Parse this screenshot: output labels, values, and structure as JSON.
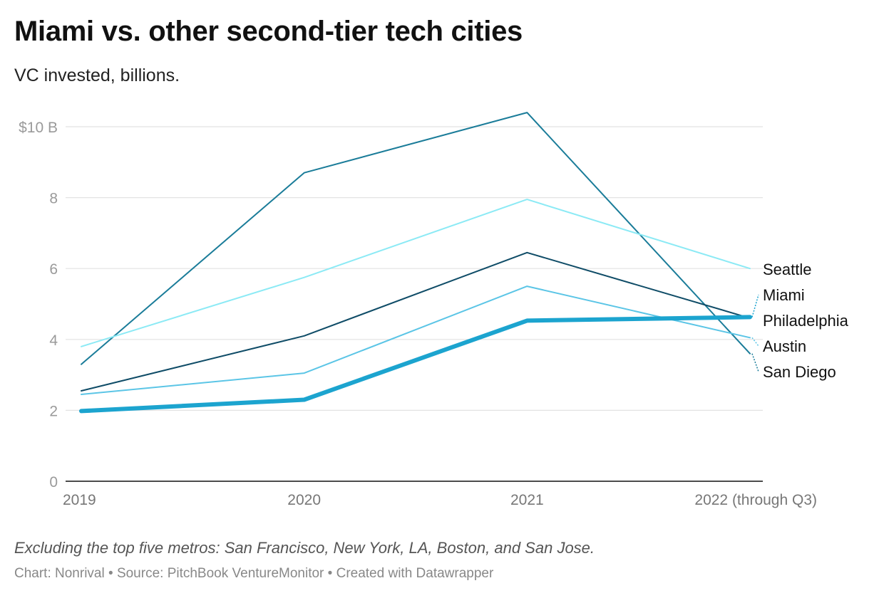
{
  "chart_data": {
    "type": "line",
    "title": "Miami vs. other second-tier tech cities",
    "subtitle": "VC invested, billions.",
    "categories": [
      "2019",
      "2020",
      "2021",
      "2022 (through Q3)"
    ],
    "ylim": [
      0,
      10
    ],
    "y_ticks": [
      {
        "value": 0,
        "label": "0"
      },
      {
        "value": 2,
        "label": "2"
      },
      {
        "value": 4,
        "label": "4"
      },
      {
        "value": 6,
        "label": "6"
      },
      {
        "value": 8,
        "label": "8"
      },
      {
        "value": 10,
        "label": "$10 B"
      }
    ],
    "grid": true,
    "series": [
      {
        "name": "San Diego",
        "values": [
          3.3,
          8.7,
          10.4,
          3.6
        ],
        "color": "#1a7c99",
        "highlight": false
      },
      {
        "name": "Seattle",
        "values": [
          3.8,
          5.75,
          7.95,
          6.0
        ],
        "color": "#8ceaf5",
        "highlight": false
      },
      {
        "name": "Philadelphia",
        "values": [
          2.55,
          4.1,
          6.45,
          4.6
        ],
        "color": "#0f4c67",
        "highlight": false
      },
      {
        "name": "Austin",
        "values": [
          2.45,
          3.05,
          5.5,
          4.05
        ],
        "color": "#5bc5e6",
        "highlight": false
      },
      {
        "name": "Miami",
        "values": [
          1.98,
          2.3,
          4.53,
          4.63
        ],
        "color": "#1ca4cf",
        "highlight": true
      }
    ],
    "legend_placement": "right, labels at line ends",
    "label_order": [
      "Seattle",
      "Miami",
      "Philadelphia",
      "Austin",
      "San Diego"
    ]
  },
  "notes": "Excluding the top five metros: San Francisco, New York, LA, Boston, and San Jose.",
  "footer": {
    "chart_credit": "Chart: Nonrival",
    "source": "Source: PitchBook VentureMonitor",
    "created": "Created with Datawrapper",
    "separator": "•"
  }
}
